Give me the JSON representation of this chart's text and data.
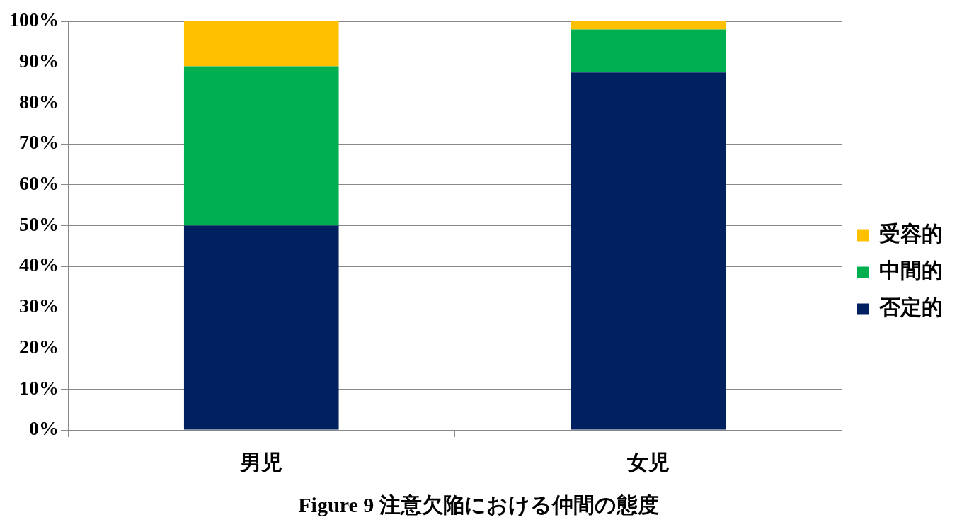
{
  "chart_data": {
    "type": "bar",
    "title": "Figure 9 注意欠陥における仲間の態度",
    "categories": [
      "男児",
      "女児"
    ],
    "stacked": true,
    "series": [
      {
        "name": "否定的",
        "color": "#002060",
        "values": [
          50,
          87.5
        ]
      },
      {
        "name": "中間的",
        "color": "#00b050",
        "values": [
          39,
          10.5
        ]
      },
      {
        "name": "受容的",
        "color": "#ffc000",
        "values": [
          11,
          2
        ]
      }
    ],
    "ylim": [
      0,
      100
    ],
    "yticks": [
      {
        "value": 0,
        "label": "0%"
      },
      {
        "value": 10,
        "label": "10%"
      },
      {
        "value": 20,
        "label": "20%"
      },
      {
        "value": 30,
        "label": "30%"
      },
      {
        "value": 40,
        "label": "40%"
      },
      {
        "value": 50,
        "label": "50%"
      },
      {
        "value": 60,
        "label": "60%"
      },
      {
        "value": 70,
        "label": "70%"
      },
      {
        "value": 80,
        "label": "80%"
      },
      {
        "value": 90,
        "label": "90%"
      },
      {
        "value": 100,
        "label": "100%"
      }
    ],
    "grid": "y",
    "legend": "right"
  }
}
